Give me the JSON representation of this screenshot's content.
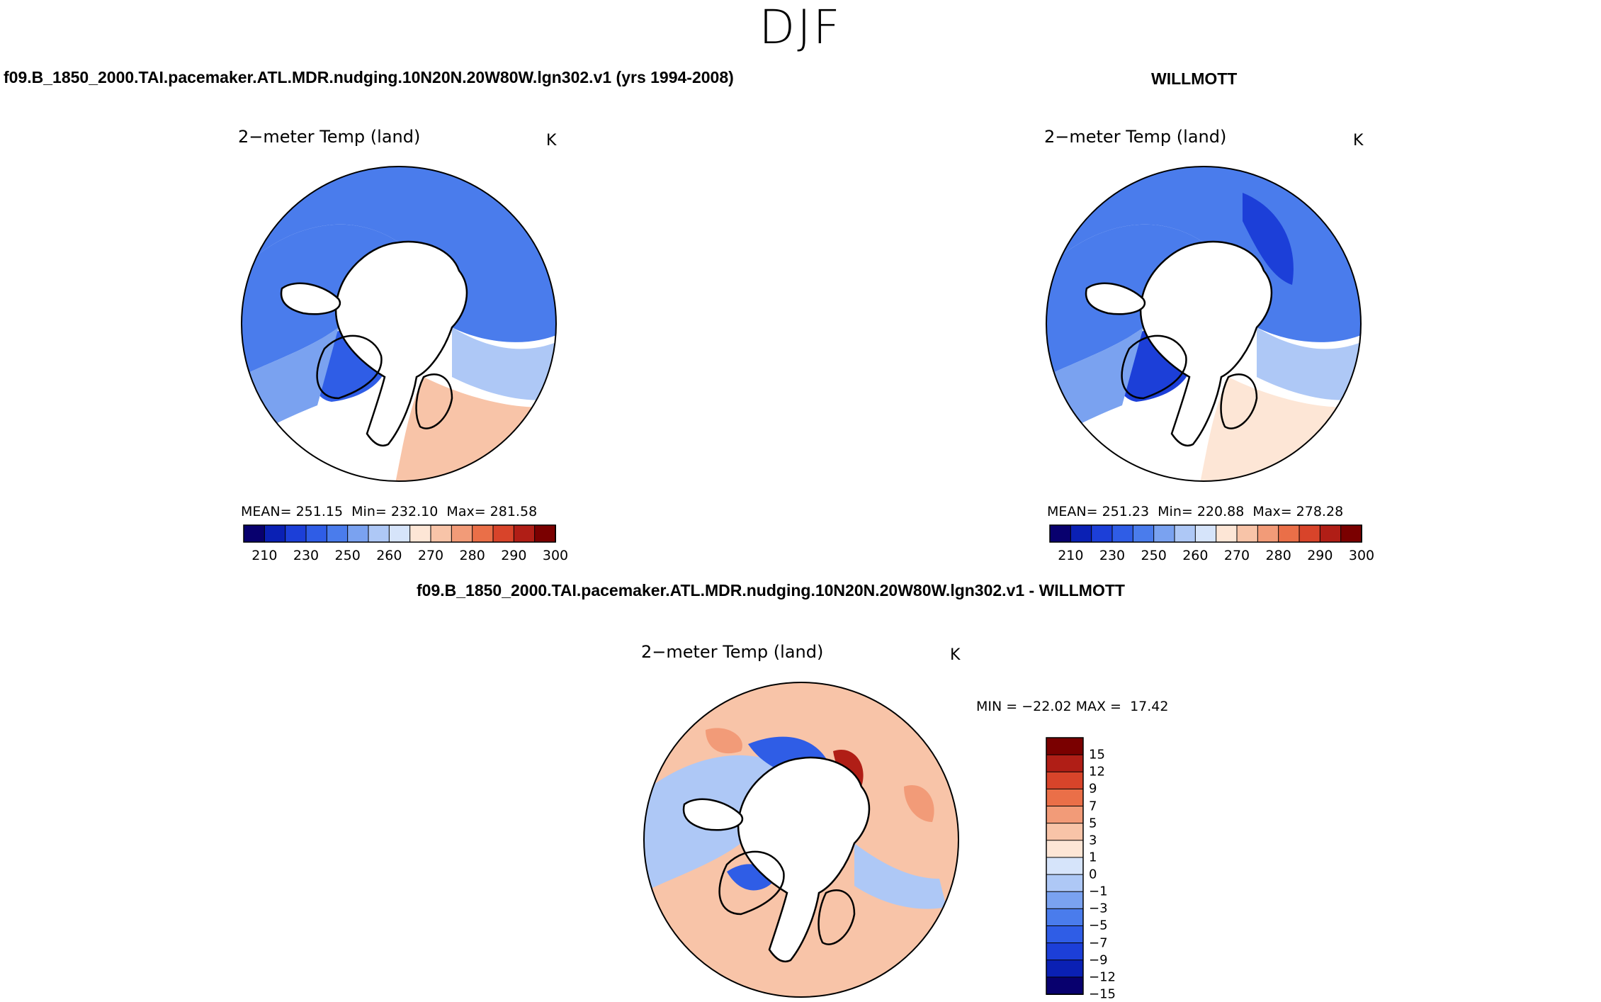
{
  "page": {
    "title": "DJF"
  },
  "headers": {
    "case": "f09.B_1850_2000.TAI.pacemaker.ATL.MDR.nudging.10N20N.20W80W.lgn302.v1 (yrs 1994-2008)",
    "obs": "WILLMOTT",
    "diff": "f09.B_1850_2000.TAI.pacemaker.ATL.MDR.nudging.10N20N.20W80W.lgn302.v1 - WILLMOTT"
  },
  "palettes": {
    "abs": [
      "#08006e",
      "#0a20b4",
      "#1c3fd8",
      "#2f5de6",
      "#4a7cec",
      "#7aa2f0",
      "#aec8f6",
      "#d6e4fa",
      "#fde6d6",
      "#f8c4a8",
      "#f29b78",
      "#ea6f48",
      "#d8442a",
      "#b01e16",
      "#7a0000"
    ],
    "diff": [
      "#08006e",
      "#0a20b4",
      "#1c3fd8",
      "#2f5de6",
      "#4a7cec",
      "#7aa2f0",
      "#aec8f6",
      "#d6e4fa",
      "#fde6d6",
      "#f8c4a8",
      "#f29b78",
      "#ea6f48",
      "#d8442a",
      "#b01e16",
      "#7a0000"
    ],
    "land_mask": "#ffffff",
    "coast": "#000000"
  },
  "chart_data": [
    {
      "type": "heatmap",
      "panel": "model",
      "title": "2−meter Temp (land)",
      "units": "K",
      "projection": "north-polar-stereographic",
      "stats": {
        "mean_label": "MEAN=",
        "mean": "251.15",
        "min_label": "Min=",
        "min": "232.10",
        "max_label": "Max=",
        "max": "281.58"
      },
      "colorbar": {
        "orientation": "horizontal",
        "levels": [
          210,
          220,
          230,
          240,
          250,
          255,
          260,
          265,
          270,
          275,
          280,
          285,
          290,
          300
        ],
        "tick_labels": [
          "210",
          "230",
          "250",
          "260",
          "270",
          "280",
          "290",
          "300"
        ]
      }
    },
    {
      "type": "heatmap",
      "panel": "obs",
      "title": "2−meter Temp (land)",
      "units": "K",
      "projection": "north-polar-stereographic",
      "stats": {
        "mean_label": "MEAN=",
        "mean": "251.23",
        "min_label": "Min=",
        "min": "220.88",
        "max_label": "Max=",
        "max": "278.28"
      },
      "colorbar": {
        "orientation": "horizontal",
        "levels": [
          210,
          220,
          230,
          240,
          250,
          255,
          260,
          265,
          270,
          275,
          280,
          285,
          290,
          300
        ],
        "tick_labels": [
          "210",
          "230",
          "250",
          "260",
          "270",
          "280",
          "290",
          "300"
        ]
      }
    },
    {
      "type": "heatmap",
      "panel": "difference",
      "title": "2−meter Temp (land)",
      "units": "K",
      "projection": "north-polar-stereographic",
      "stats": {
        "min_label": "MIN =",
        "min": "−22.02",
        "max_label": "MAX =",
        "max": "17.42"
      },
      "colorbar": {
        "orientation": "vertical",
        "tick_labels": [
          "15",
          "12",
          "9",
          "7",
          "5",
          "3",
          "1",
          "0",
          "−1",
          "−3",
          "−5",
          "−7",
          "−9",
          "−12",
          "−15"
        ]
      }
    }
  ]
}
